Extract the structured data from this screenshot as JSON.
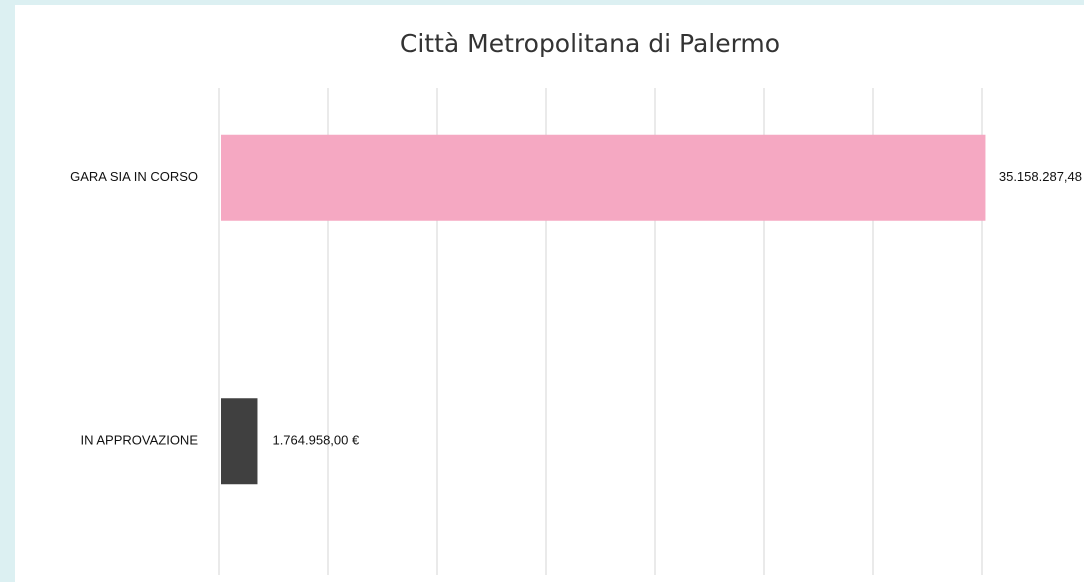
{
  "chart_data": {
    "type": "hbar",
    "title": "Città Metropolitana di Palermo",
    "categories": [
      "GARA SIA IN CORSO",
      "IN APPROVAZIONE"
    ],
    "values": [
      35158287.48,
      1764958.0
    ],
    "value_labels": [
      "35.158.287,48",
      "1.764.958,00 €"
    ],
    "colors": [
      "#f5a8c2",
      "#404040"
    ],
    "xlim": [
      0,
      40000000
    ],
    "xticks": [
      0,
      5000000,
      10000000,
      15000000,
      20000000,
      25000000,
      30000000,
      35000000
    ],
    "grid": true
  }
}
